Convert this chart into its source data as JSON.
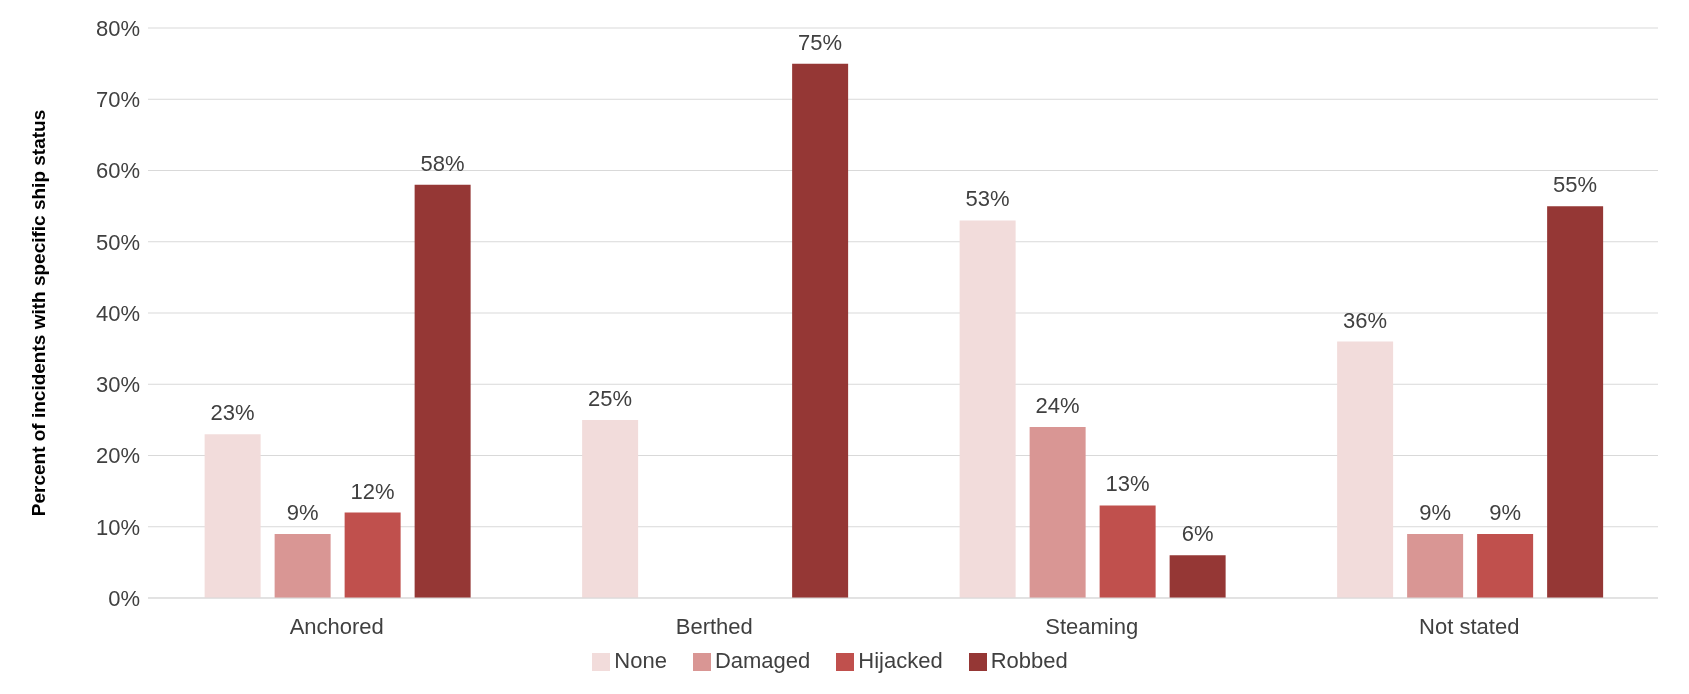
{
  "chart_data": {
    "type": "bar",
    "ylabel": "Percent of incidents with specific ship status",
    "categories": [
      "Anchored",
      "Berthed",
      "Steaming",
      "Not stated"
    ],
    "series": [
      {
        "name": "None",
        "color": "#f2dcdb",
        "values": [
          23,
          25,
          53,
          36
        ],
        "value_labels": [
          "23%",
          "25%",
          "53%",
          "36%"
        ]
      },
      {
        "name": "Damaged",
        "color": "#d99694",
        "values": [
          9,
          null,
          24,
          9
        ],
        "value_labels": [
          "9%",
          null,
          "24%",
          "9%"
        ]
      },
      {
        "name": "Hijacked",
        "color": "#c0504d",
        "values": [
          12,
          null,
          13,
          9
        ],
        "value_labels": [
          "12%",
          null,
          "13%",
          "9%"
        ]
      },
      {
        "name": "Robbed",
        "color": "#953735",
        "values": [
          58,
          75,
          6,
          55
        ],
        "value_labels": [
          "58%",
          "75%",
          "6%",
          "55%"
        ]
      }
    ],
    "ylim": [
      0,
      80
    ],
    "yticks": [
      {
        "value": 0,
        "label": "0%"
      },
      {
        "value": 10,
        "label": "10%"
      },
      {
        "value": 20,
        "label": "20%"
      },
      {
        "value": 30,
        "label": "30%"
      },
      {
        "value": 40,
        "label": "40%"
      },
      {
        "value": 50,
        "label": "50%"
      },
      {
        "value": 60,
        "label": "60%"
      },
      {
        "value": 70,
        "label": "70%"
      },
      {
        "value": 80,
        "label": "80%"
      }
    ],
    "grid": "y",
    "legend": "bottom"
  }
}
